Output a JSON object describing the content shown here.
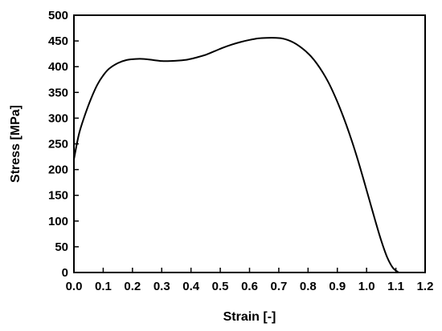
{
  "chart_data": {
    "type": "line",
    "xlabel": "Strain [-]",
    "ylabel": "Stress [MPa]",
    "xlim": [
      0.0,
      1.2
    ],
    "ylim": [
      0,
      500
    ],
    "x_ticks": [
      "0.0",
      "0.1",
      "0.2",
      "0.3",
      "0.4",
      "0.5",
      "0.6",
      "0.7",
      "0.8",
      "0.9",
      "1.0",
      "1.1",
      "1.2"
    ],
    "y_ticks": [
      "0",
      "50",
      "100",
      "150",
      "200",
      "250",
      "300",
      "350",
      "400",
      "450",
      "500"
    ],
    "grid": false,
    "legend": "none",
    "series": [
      {
        "color": "#000000",
        "x": [
          0.0,
          0.01,
          0.02,
          0.04,
          0.06,
          0.08,
          0.1,
          0.12,
          0.15,
          0.18,
          0.21,
          0.24,
          0.27,
          0.3,
          0.33,
          0.36,
          0.39,
          0.42,
          0.45,
          0.48,
          0.51,
          0.54,
          0.57,
          0.6,
          0.63,
          0.66,
          0.69,
          0.71,
          0.73,
          0.75,
          0.77,
          0.79,
          0.81,
          0.83,
          0.85,
          0.87,
          0.89,
          0.91,
          0.93,
          0.95,
          0.97,
          0.99,
          1.01,
          1.03,
          1.05,
          1.07,
          1.09,
          1.11
        ],
        "y": [
          220,
          250,
          275,
          310,
          340,
          365,
          383,
          396,
          407,
          413,
          415,
          415,
          413,
          411,
          411,
          412,
          414,
          418,
          423,
          430,
          437,
          443,
          448,
          452,
          455,
          456,
          456,
          455,
          452,
          447,
          440,
          431,
          420,
          406,
          389,
          369,
          345,
          318,
          288,
          255,
          219,
          180,
          140,
          100,
          62,
          30,
          9,
          0
        ]
      }
    ]
  }
}
